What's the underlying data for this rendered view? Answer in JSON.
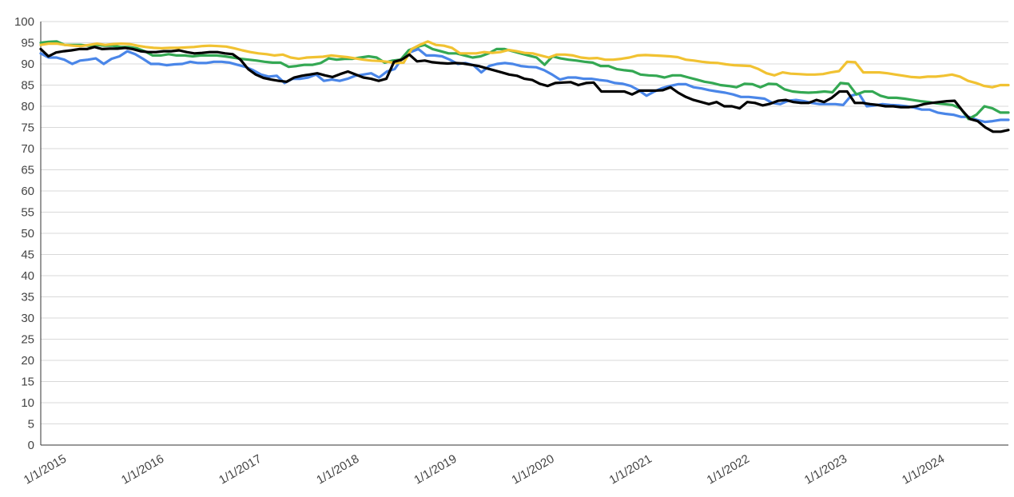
{
  "chart_data": {
    "type": "line",
    "title": "",
    "xlabel": "",
    "ylabel": "",
    "ylim": [
      0,
      100
    ],
    "yticks": [
      0,
      5,
      10,
      15,
      20,
      25,
      30,
      35,
      40,
      45,
      50,
      55,
      60,
      65,
      70,
      75,
      80,
      85,
      90,
      95,
      100
    ],
    "grid": true,
    "legend": "none",
    "x_start": "2015-01",
    "x_end": "2024-12",
    "x_ticks": [
      "1/1/2015",
      "1/1/2016",
      "1/1/2017",
      "1/1/2018",
      "1/1/2019",
      "1/1/2020",
      "1/1/2021",
      "1/1/2022",
      "1/1/2023",
      "1/1/2024"
    ],
    "series": [
      {
        "color": "#4a86e8",
        "values": [
          92.5,
          91.5,
          91.5,
          91,
          90,
          90.8,
          91,
          91.3,
          90,
          91.2,
          91.8,
          93,
          92.3,
          91.2,
          90,
          90,
          89.7,
          89.9,
          90,
          90.5,
          90.2,
          90.2,
          90.5,
          90.5,
          90.3,
          89.8,
          89.3,
          88.5,
          87.5,
          87,
          87.2,
          85.5,
          86.5,
          86.5,
          86.8,
          87.5,
          86,
          86.3,
          86,
          86.5,
          87.2,
          87.5,
          87.8,
          86.8,
          88.2,
          88.8,
          91.5,
          92.8,
          93.5,
          92,
          92,
          91.8,
          91,
          90,
          90.2,
          89.7,
          88,
          89.5,
          90,
          90.2,
          90,
          89.5,
          89.3,
          89.2,
          88.5,
          87.5,
          86.3,
          86.8,
          86.8,
          86.5,
          86.5,
          86.2,
          86,
          85.5,
          85.3,
          84.8,
          83.8,
          82.5,
          83.5,
          84.3,
          84.8,
          85.2,
          85.2,
          84.5,
          84.2,
          83.8,
          83.5,
          83.2,
          82.8,
          82.2,
          82.2,
          82,
          81.8,
          80.8,
          80.5,
          81.3,
          81.5,
          81.2,
          80.8,
          80.5,
          80.5,
          80.5,
          80.3,
          82.5,
          83,
          80,
          80.2,
          80.5,
          80.3,
          80.2,
          80,
          79.7,
          79.2,
          79.2,
          78.5,
          78.2,
          78,
          77.5,
          77.5,
          76.8,
          76.3,
          76.5,
          76.8,
          76.8
        ]
      },
      {
        "color": "#34a853",
        "values": [
          95,
          95.2,
          95.3,
          94.5,
          94.5,
          94.5,
          94.3,
          94.5,
          94.3,
          94.3,
          94,
          94,
          93.7,
          93,
          92,
          92,
          92.3,
          92,
          92,
          91.8,
          92,
          92,
          92,
          91.8,
          91.5,
          91.2,
          91,
          90.8,
          90.5,
          90.3,
          90.3,
          89.3,
          89.5,
          89.8,
          89.8,
          90.2,
          91.3,
          91,
          91.2,
          91.2,
          91.5,
          91.8,
          91.5,
          90.3,
          90.8,
          91,
          93.2,
          94,
          94.5,
          93.5,
          93,
          92.5,
          92.5,
          92,
          91.5,
          91.8,
          92.5,
          93.5,
          93.5,
          93,
          92.5,
          92,
          91.5,
          89.8,
          91.8,
          91.3,
          91,
          90.8,
          90.5,
          90.3,
          89.5,
          89.5,
          88.8,
          88.5,
          88.3,
          87.5,
          87.3,
          87.2,
          86.8,
          87.3,
          87.3,
          86.8,
          86.3,
          85.8,
          85.5,
          85,
          84.8,
          84.5,
          85.3,
          85.2,
          84.5,
          85.3,
          85.2,
          84,
          83.5,
          83.3,
          83.2,
          83.3,
          83.5,
          83.3,
          85.5,
          85.3,
          82.8,
          83.5,
          83.5,
          82.5,
          82,
          82,
          81.8,
          81.5,
          81.2,
          81,
          80.7,
          80.5,
          80.3,
          79.5,
          77,
          78,
          80,
          79.5,
          78.5,
          78.5
        ]
      },
      {
        "color": "#f1c232",
        "values": [
          94.5,
          94.8,
          94.8,
          94.5,
          94.3,
          94.2,
          94.5,
          94.8,
          94.5,
          94.7,
          94.8,
          94.7,
          94.3,
          94,
          93.8,
          93.7,
          93.8,
          93.8,
          93.9,
          94,
          94.2,
          94.3,
          94.2,
          94.1,
          93.7,
          93.2,
          92.8,
          92.5,
          92.3,
          92,
          92.2,
          91.5,
          91.2,
          91.5,
          91.6,
          91.7,
          92,
          91.8,
          91.6,
          91.3,
          91,
          90.8,
          90.7,
          90.5,
          90.2,
          90.3,
          93.5,
          94.5,
          95.3,
          94.5,
          94.3,
          93.8,
          92.5,
          92.5,
          92.5,
          92.8,
          92.6,
          92.8,
          93.3,
          93,
          92.6,
          92.5,
          92,
          91.5,
          92.2,
          92.2,
          92,
          91.5,
          91.3,
          91.4,
          91,
          91,
          91.2,
          91.5,
          92,
          92.1,
          92,
          91.9,
          91.8,
          91.6,
          91,
          90.8,
          90.5,
          90.3,
          90.2,
          89.9,
          89.7,
          89.6,
          89.5,
          88.8,
          87.8,
          87.3,
          88,
          87.7,
          87.6,
          87.5,
          87.5,
          87.6,
          88,
          88.3,
          90.5,
          90.4,
          88,
          88,
          88,
          87.8,
          87.5,
          87.2,
          86.9,
          86.8,
          87,
          87,
          87.2,
          87.5,
          87,
          86,
          85.5,
          84.8,
          84.5,
          85,
          85
        ]
      },
      {
        "color": "#000000",
        "values": [
          93.5,
          91.8,
          92.7,
          93,
          93.2,
          93.5,
          93.5,
          94,
          93.5,
          93.6,
          93.6,
          93.8,
          93.5,
          93,
          92.8,
          92.8,
          93,
          93,
          93.2,
          92.8,
          92.5,
          92.6,
          92.8,
          92.8,
          92.5,
          92.3,
          91,
          88.8,
          87.5,
          86.7,
          86.3,
          86,
          85.8,
          86.8,
          87.2,
          87.5,
          87.8,
          87.3,
          86.9,
          87.6,
          88.2,
          87.5,
          86.8,
          86.5,
          86,
          86.5,
          90.5,
          91,
          92.2,
          90.6,
          90.8,
          90.4,
          90.2,
          90.1,
          90.2,
          90.1,
          89.8,
          89.5,
          89,
          88.5,
          88,
          87.5,
          87.2,
          86.5,
          86.2,
          85.3,
          84.8,
          85.5,
          85.6,
          85.7,
          85,
          85.5,
          85.6,
          83.5,
          83.5,
          83.5,
          83.5,
          82.8,
          83.7,
          83.7,
          83.7,
          83.8,
          84.5,
          83.2,
          82.2,
          81.5,
          81,
          80.5,
          81,
          80,
          80,
          79.5,
          81,
          80.8,
          80.2,
          80.6,
          81.3,
          81.5,
          81,
          80.8,
          80.8,
          81.5,
          81,
          82,
          83.5,
          83.5,
          80.8,
          80.8,
          80.5,
          80.3,
          80,
          80,
          79.8,
          79.8,
          80,
          80.5,
          80.8,
          81,
          81.2,
          81.3,
          79,
          77,
          76.5,
          75,
          74,
          74,
          74.4
        ]
      }
    ]
  }
}
